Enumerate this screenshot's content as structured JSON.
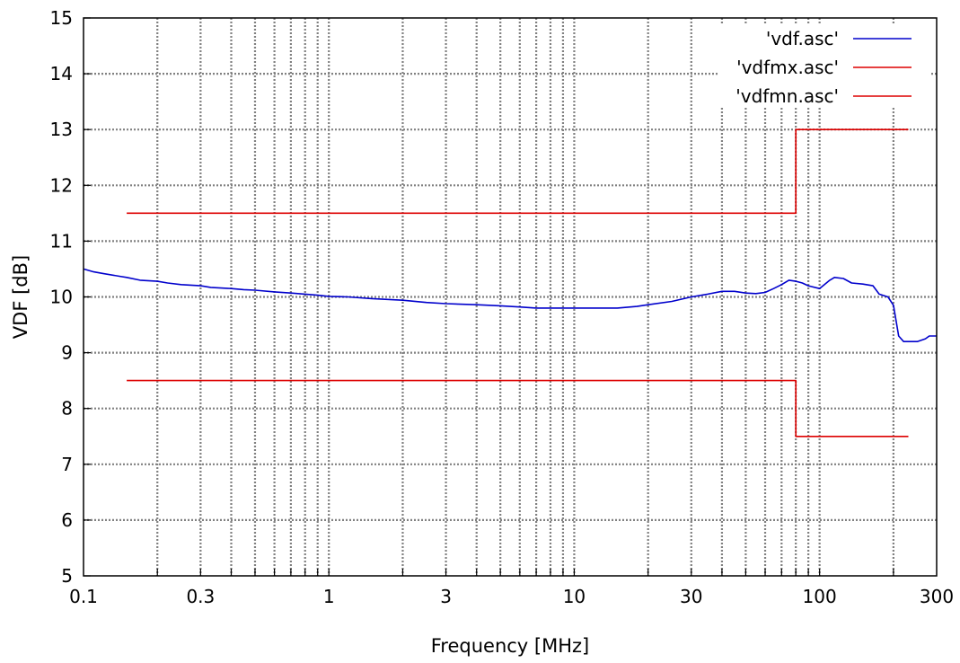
{
  "chart_data": {
    "type": "line",
    "title": "",
    "xlabel": "Frequency [MHz]",
    "ylabel": "VDF [dB]",
    "x_scale": "log",
    "xlim": [
      0.1,
      300
    ],
    "ylim": [
      5,
      15
    ],
    "grid": true,
    "legend_position": "top-right",
    "x_tick_labels": [
      {
        "value": 0.1,
        "label": "0.1"
      },
      {
        "value": 0.3,
        "label": "0.3"
      },
      {
        "value": 1,
        "label": "1"
      },
      {
        "value": 3,
        "label": "3"
      },
      {
        "value": 10,
        "label": "10"
      },
      {
        "value": 30,
        "label": "30"
      },
      {
        "value": 100,
        "label": "100"
      },
      {
        "value": 300,
        "label": "300"
      }
    ],
    "x_minor_gridlines": [
      0.2,
      0.4,
      0.5,
      0.6,
      0.7,
      0.8,
      0.9,
      2,
      4,
      5,
      6,
      7,
      8,
      9,
      20,
      40,
      50,
      60,
      70,
      80,
      90,
      200
    ],
    "y_ticks": [
      5,
      6,
      7,
      8,
      9,
      10,
      11,
      12,
      13,
      14,
      15
    ],
    "series": [
      {
        "name": "'vdf.asc'",
        "color": "#0000cc",
        "points": [
          [
            0.1,
            10.5
          ],
          [
            0.11,
            10.45
          ],
          [
            0.12,
            10.42
          ],
          [
            0.14,
            10.37
          ],
          [
            0.15,
            10.35
          ],
          [
            0.17,
            10.3
          ],
          [
            0.2,
            10.28
          ],
          [
            0.22,
            10.25
          ],
          [
            0.25,
            10.22
          ],
          [
            0.3,
            10.2
          ],
          [
            0.33,
            10.17
          ],
          [
            0.4,
            10.15
          ],
          [
            0.45,
            10.13
          ],
          [
            0.5,
            10.12
          ],
          [
            0.6,
            10.09
          ],
          [
            0.7,
            10.07
          ],
          [
            0.8,
            10.05
          ],
          [
            0.9,
            10.03
          ],
          [
            1,
            10.01
          ],
          [
            1.2,
            10.0
          ],
          [
            1.5,
            9.97
          ],
          [
            2,
            9.94
          ],
          [
            2.5,
            9.9
          ],
          [
            3,
            9.88
          ],
          [
            4,
            9.86
          ],
          [
            5,
            9.84
          ],
          [
            6,
            9.82
          ],
          [
            7,
            9.8
          ],
          [
            10,
            9.8
          ],
          [
            15,
            9.8
          ],
          [
            18,
            9.83
          ],
          [
            20,
            9.86
          ],
          [
            25,
            9.92
          ],
          [
            30,
            10.0
          ],
          [
            35,
            10.05
          ],
          [
            40,
            10.1
          ],
          [
            45,
            10.1
          ],
          [
            50,
            10.07
          ],
          [
            55,
            10.06
          ],
          [
            60,
            10.08
          ],
          [
            65,
            10.15
          ],
          [
            70,
            10.22
          ],
          [
            75,
            10.3
          ],
          [
            80,
            10.28
          ],
          [
            85,
            10.25
          ],
          [
            90,
            10.2
          ],
          [
            100,
            10.15
          ],
          [
            110,
            10.3
          ],
          [
            115,
            10.35
          ],
          [
            125,
            10.33
          ],
          [
            135,
            10.25
          ],
          [
            150,
            10.23
          ],
          [
            165,
            10.2
          ],
          [
            175,
            10.05
          ],
          [
            190,
            10.0
          ],
          [
            200,
            9.85
          ],
          [
            210,
            9.3
          ],
          [
            220,
            9.2
          ],
          [
            250,
            9.2
          ],
          [
            270,
            9.25
          ],
          [
            280,
            9.3
          ],
          [
            300,
            9.3
          ]
        ]
      },
      {
        "name": "'vdfmx.asc'",
        "color": "#dd0000",
        "points": [
          [
            0.15,
            11.5
          ],
          [
            80,
            11.5
          ],
          [
            80,
            13.0
          ],
          [
            230,
            13.0
          ]
        ]
      },
      {
        "name": "'vdfmn.asc'",
        "color": "#dd0000",
        "points": [
          [
            0.15,
            8.5
          ],
          [
            80,
            8.5
          ],
          [
            80,
            7.5
          ],
          [
            230,
            7.5
          ]
        ]
      }
    ]
  }
}
